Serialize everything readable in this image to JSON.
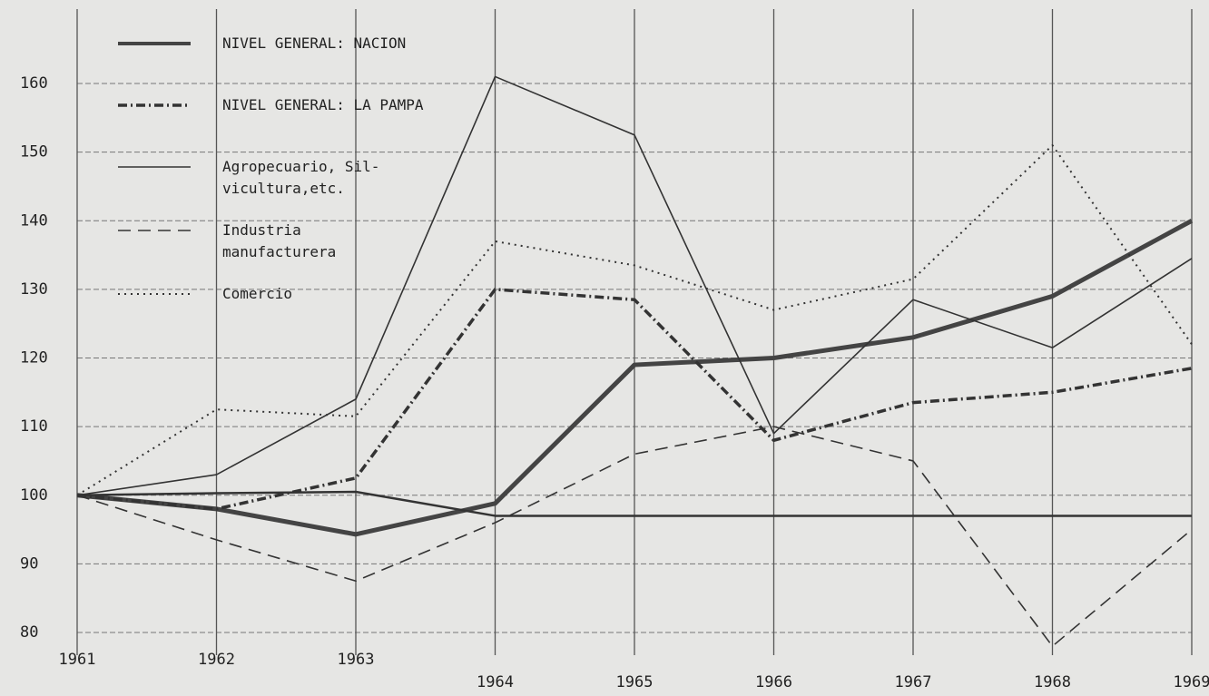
{
  "chart_data": {
    "type": "line",
    "categories": [
      "1961",
      "1962",
      "1963",
      "1964",
      "1965",
      "1966",
      "1967",
      "1968",
      "1969"
    ],
    "ylim": [
      80,
      160
    ],
    "yticks": [
      80,
      90,
      100,
      110,
      120,
      130,
      140,
      150,
      160
    ],
    "grid": true,
    "series": [
      {
        "name": "NIVEL GENERAL: NACION",
        "color": "#444",
        "dash": "solid",
        "width": 5,
        "values": [
          100,
          98,
          94.3,
          98.8,
          119,
          120,
          123,
          129,
          140
        ]
      },
      {
        "name": "NIVEL GENERAL: LA PAMPA",
        "color": "#333",
        "dash": "dashdot",
        "width": 3.5,
        "values": [
          100,
          98,
          102.5,
          130,
          128.5,
          108,
          113.5,
          115,
          118.5
        ]
      },
      {
        "name": "Agropecuario, Sil-\nvicultura,etc.",
        "color": "#333",
        "dash": "solid",
        "width": 1.6,
        "values": [
          100,
          103,
          114,
          161,
          152.5,
          109,
          128.5,
          121.5,
          134.5
        ]
      },
      {
        "name": "Industria\nmanufacturera",
        "color": "#333",
        "dash": "dashed",
        "width": 1.6,
        "values": [
          100,
          93.5,
          87.5,
          96,
          106,
          110,
          105,
          78,
          95
        ]
      },
      {
        "name": "Comercio",
        "color": "#333",
        "dash": "dotted",
        "width": 2,
        "values": [
          100,
          112.5,
          111.5,
          137,
          133.5,
          127,
          131.5,
          151,
          122
        ]
      },
      {
        "color": "#333",
        "dash": "solid",
        "width": 2.5,
        "values": [
          100,
          100.3,
          100.5,
          97,
          97,
          97,
          97,
          97,
          97
        ]
      }
    ]
  }
}
